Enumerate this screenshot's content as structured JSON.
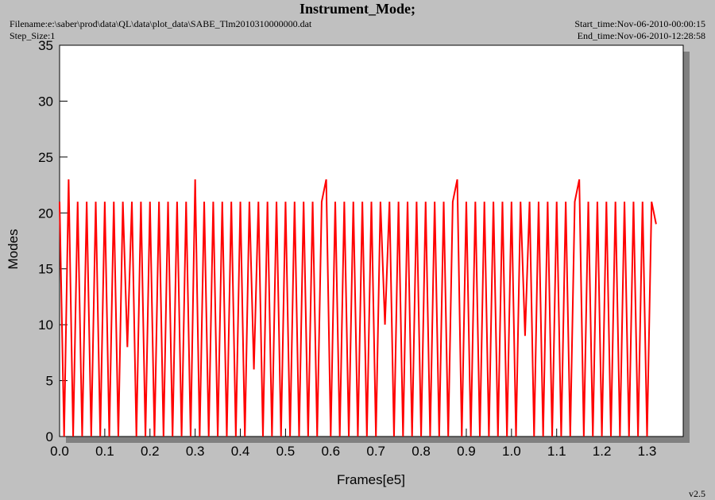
{
  "chart_data": {
    "type": "line",
    "title": "Instrument_Mode;",
    "filename": "Filename:e:\\saber\\prod\\data\\QL\\data\\plot_data\\SABE_Tlm2010310000000.dat",
    "step_size": "Step_Size:1",
    "start_time": "Start_time:Nov-06-2010-00:00:15",
    "end_time": "End_time:Nov-06-2010-12:28:58",
    "version": "v2.5",
    "xlabel": "Frames[e5]",
    "ylabel": "Modes",
    "xlim": [
      0,
      1.38
    ],
    "ylim": [
      0,
      35
    ],
    "xticks": [
      {
        "value": 0,
        "label": "0.0"
      },
      0.1,
      0.2,
      0.3,
      0.4,
      0.5,
      0.6,
      0.7,
      0.8,
      0.9,
      {
        "value": 1,
        "label": "1.0"
      },
      1.1,
      1.2,
      1.3
    ],
    "yticks": [
      0,
      5,
      10,
      15,
      20,
      25,
      30,
      35
    ],
    "x": [
      0.0,
      0.01,
      0.02,
      0.03,
      0.04,
      0.05,
      0.06,
      0.07,
      0.08,
      0.09,
      0.1,
      0.11,
      0.12,
      0.13,
      0.14,
      0.15,
      0.16,
      0.17,
      0.18,
      0.19,
      0.2,
      0.21,
      0.22,
      0.23,
      0.24,
      0.25,
      0.26,
      0.27,
      0.28,
      0.29,
      0.3,
      0.31,
      0.32,
      0.33,
      0.34,
      0.35,
      0.36,
      0.37,
      0.38,
      0.39,
      0.4,
      0.41,
      0.42,
      0.43,
      0.44,
      0.45,
      0.46,
      0.47,
      0.48,
      0.49,
      0.5,
      0.51,
      0.52,
      0.53,
      0.54,
      0.55,
      0.56,
      0.57,
      0.58,
      0.59,
      0.6,
      0.61,
      0.62,
      0.63,
      0.64,
      0.65,
      0.66,
      0.67,
      0.68,
      0.69,
      0.7,
      0.71,
      0.72,
      0.73,
      0.74,
      0.75,
      0.76,
      0.77,
      0.78,
      0.79,
      0.8,
      0.81,
      0.82,
      0.83,
      0.84,
      0.85,
      0.86,
      0.87,
      0.88,
      0.89,
      0.9,
      0.91,
      0.92,
      0.93,
      0.94,
      0.95,
      0.96,
      0.97,
      0.98,
      0.99,
      1.0,
      1.01,
      1.02,
      1.03,
      1.04,
      1.05,
      1.06,
      1.07,
      1.08,
      1.09,
      1.1,
      1.11,
      1.12,
      1.13,
      1.14,
      1.15,
      1.16,
      1.17,
      1.18,
      1.19,
      1.2,
      1.21,
      1.22,
      1.23,
      1.24,
      1.25,
      1.26,
      1.27,
      1.28,
      1.29,
      1.3,
      1.31,
      1.32
    ],
    "series": [
      {
        "color": "#ff0000",
        "values": [
          21,
          0,
          23,
          0,
          21,
          0,
          21,
          0,
          21,
          0,
          21,
          0,
          21,
          0,
          21,
          8,
          21,
          0,
          21,
          0,
          21,
          0,
          21,
          0,
          21,
          0,
          21,
          0,
          21,
          0,
          23,
          0,
          21,
          0,
          21,
          0,
          21,
          0,
          21,
          0,
          21,
          0,
          21,
          6,
          21,
          0,
          21,
          0,
          21,
          0,
          21,
          0,
          21,
          0,
          21,
          0,
          21,
          0,
          21,
          23,
          0,
          21,
          0,
          21,
          0,
          21,
          0,
          21,
          0,
          21,
          0,
          21,
          10,
          21,
          0,
          21,
          0,
          21,
          0,
          21,
          0,
          21,
          0,
          21,
          0,
          21,
          0,
          21,
          23,
          0,
          21,
          0,
          21,
          0,
          21,
          0,
          21,
          0,
          21,
          0,
          21,
          0,
          21,
          9,
          21,
          0,
          21,
          0,
          21,
          0,
          21,
          0,
          21,
          0,
          21,
          23,
          0,
          21,
          0,
          21,
          0,
          21,
          0,
          21,
          0,
          21,
          0,
          21,
          0,
          21,
          0,
          21,
          19
        ]
      }
    ]
  }
}
